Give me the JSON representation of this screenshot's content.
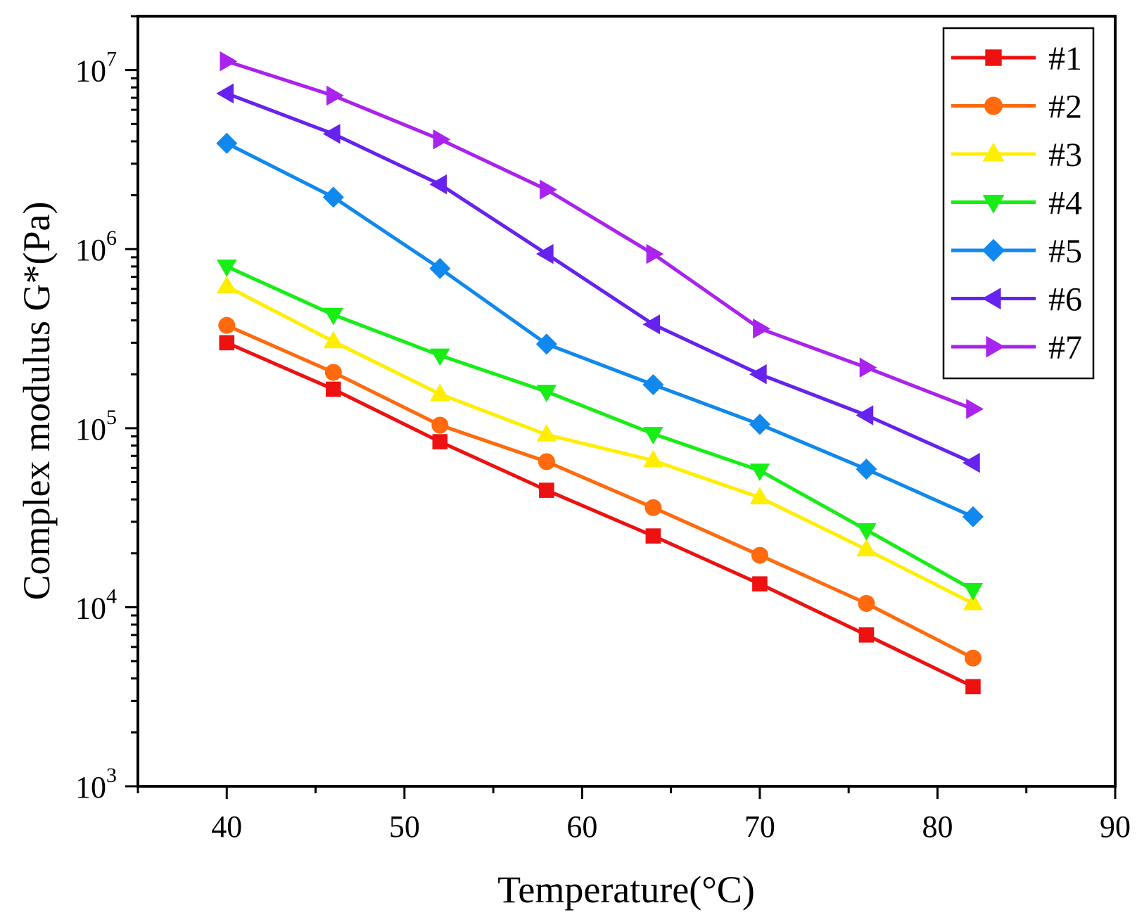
{
  "chart_data": {
    "type": "line",
    "title": "",
    "xlabel": "Temperature(°C)",
    "ylabel": "Complex modulus G*(Pa)",
    "xlim": [
      35,
      90
    ],
    "ylim": [
      1000,
      20000000
    ],
    "yscale": "log",
    "x_ticks": [
      40,
      50,
      60,
      70,
      80,
      90
    ],
    "x_tick_labels": [
      "40",
      "50",
      "60",
      "70",
      "80",
      "90"
    ],
    "y_ticks": [
      {
        "value": 1000,
        "base": "10",
        "exp": "3"
      },
      {
        "value": 10000,
        "base": "10",
        "exp": "4"
      },
      {
        "value": 100000,
        "base": "10",
        "exp": "5"
      },
      {
        "value": 1000000,
        "base": "10",
        "exp": "6"
      },
      {
        "value": 10000000,
        "base": "10",
        "exp": "7"
      }
    ],
    "legend_position": "top-right",
    "grid": false,
    "x": [
      40,
      46,
      52,
      58,
      64,
      70,
      76,
      82
    ],
    "series": [
      {
        "name": "#1",
        "color": "#ee1111",
        "marker": "square",
        "values": [
          300000,
          165000,
          84000,
          45000,
          25000,
          13500,
          7000,
          3600
        ]
      },
      {
        "name": "#2",
        "color": "#ff6a0e",
        "marker": "circle",
        "values": [
          375000,
          205000,
          104000,
          65000,
          36000,
          19500,
          10500,
          5200
        ]
      },
      {
        "name": "#3",
        "color": "#ffee00",
        "marker": "triangle-up",
        "values": [
          620000,
          305000,
          155000,
          92000,
          66000,
          41000,
          21000,
          10500
        ]
      },
      {
        "name": "#4",
        "color": "#16ee16",
        "marker": "triangle-down",
        "values": [
          800000,
          430000,
          255000,
          160000,
          93000,
          58000,
          27000,
          12500
        ]
      },
      {
        "name": "#5",
        "color": "#1188ee",
        "marker": "diamond",
        "values": [
          3900000,
          1950000,
          780000,
          295000,
          175000,
          105000,
          59000,
          32000
        ]
      },
      {
        "name": "#6",
        "color": "#6622ee",
        "marker": "triangle-left",
        "values": [
          7400000,
          4400000,
          2300000,
          940000,
          380000,
          200000,
          118000,
          64000
        ]
      },
      {
        "name": "#7",
        "color": "#aa22ee",
        "marker": "triangle-right",
        "values": [
          11200000,
          7200000,
          4100000,
          2150000,
          940000,
          360000,
          218000,
          128000
        ]
      }
    ]
  }
}
